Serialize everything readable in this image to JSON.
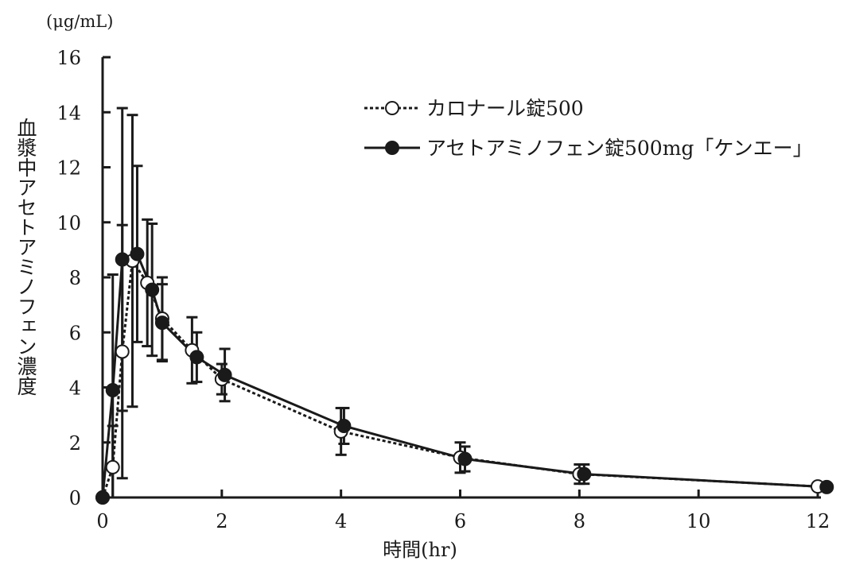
{
  "chart_data": {
    "type": "line",
    "unit_label": "(μg/mL)",
    "ylabel": "血漿中アセトアミノフェン濃度",
    "xlabel": "時間(hr)",
    "xlim": [
      0,
      12
    ],
    "ylim": [
      0,
      16
    ],
    "xticks": [
      0,
      2,
      4,
      6,
      8,
      10,
      12
    ],
    "yticks": [
      0,
      2,
      4,
      6,
      8,
      10,
      12,
      14,
      16
    ],
    "grid": false,
    "legend_position": "top-right",
    "series": [
      {
        "name": "カロナール錠500",
        "marker": "open-circle",
        "line": "dotted",
        "color": "#1a1a1a",
        "points": [
          {
            "x": 0,
            "y": 0,
            "err": 0
          },
          {
            "x": 0.17,
            "y": 1.1,
            "err": 1.5
          },
          {
            "x": 0.33,
            "y": 5.3,
            "err": 4.6
          },
          {
            "x": 0.5,
            "y": 8.6,
            "err": 5.3
          },
          {
            "x": 0.75,
            "y": 7.8,
            "err": 2.3
          },
          {
            "x": 1.0,
            "y": 6.5,
            "err": 1.5
          },
          {
            "x": 1.5,
            "y": 5.35,
            "err": 1.2
          },
          {
            "x": 2.0,
            "y": 4.3,
            "err": 0.55
          },
          {
            "x": 4.0,
            "y": 2.4,
            "err": 0.85
          },
          {
            "x": 6.0,
            "y": 1.45,
            "err": 0.55
          },
          {
            "x": 8.0,
            "y": 0.85,
            "err": 0.35
          },
          {
            "x": 12.0,
            "y": 0.4,
            "err": 0
          }
        ]
      },
      {
        "name": "アセトアミノフェン錠500mg「ケンエー」",
        "marker": "filled-circle",
        "line": "solid",
        "color": "#1a1a1a",
        "points": [
          {
            "x": 0,
            "y": 0,
            "err": 0
          },
          {
            "x": 0.17,
            "y": 3.9,
            "err": 4.2
          },
          {
            "x": 0.33,
            "y": 8.65,
            "err": 5.5
          },
          {
            "x": 0.58,
            "y": 8.85,
            "err": 3.2
          },
          {
            "x": 0.83,
            "y": 7.55,
            "err": 2.4
          },
          {
            "x": 1.0,
            "y": 6.35,
            "err": 1.4
          },
          {
            "x": 1.58,
            "y": 5.1,
            "err": 0.9
          },
          {
            "x": 2.05,
            "y": 4.45,
            "err": 0.95
          },
          {
            "x": 4.05,
            "y": 2.6,
            "err": 0.65
          },
          {
            "x": 6.08,
            "y": 1.4,
            "err": 0.45
          },
          {
            "x": 8.08,
            "y": 0.85,
            "err": 0.35
          },
          {
            "x": 12.15,
            "y": 0.38,
            "err": 0
          }
        ]
      }
    ]
  }
}
